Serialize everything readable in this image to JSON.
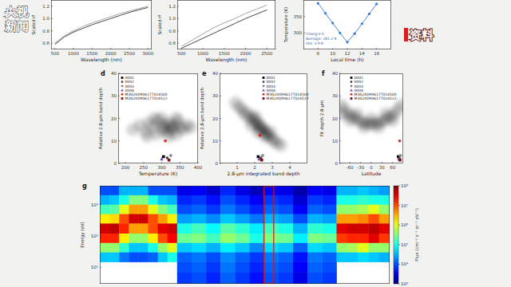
{
  "overlay": {
    "logo": [
      "央视",
      "新闻"
    ],
    "tag": "资料"
  },
  "chart_data": [
    {
      "type": "line",
      "x_label": "Wavelength (nm)",
      "y_label": "Scaled rf",
      "x": [
        500,
        750,
        1000,
        1250,
        1500,
        1750,
        2000,
        2250,
        2500,
        2750,
        3000
      ],
      "series": [
        {
          "color": "#9a9a9a",
          "values": [
            0.6,
            0.72,
            0.8,
            0.87,
            0.93,
            0.98,
            1.03,
            1.08,
            1.12,
            1.16,
            1.2
          ]
        },
        {
          "color": "#333333",
          "values": [
            0.58,
            0.7,
            0.78,
            0.84,
            0.9,
            0.95,
            1.0,
            1.05,
            1.1,
            1.14,
            1.18
          ]
        }
      ],
      "xlim": [
        400,
        3100
      ],
      "ylim": [
        0.5,
        1.3
      ],
      "xticks": [
        500,
        1000,
        1500,
        2000,
        2500,
        3000
      ],
      "yticks": [
        0.6,
        0.8,
        {
          "value": 1,
          "label": "1.0"
        },
        1.2
      ]
    },
    {
      "type": "line",
      "x_label": "Wavelength (nm)",
      "y_label": "Scaled rf",
      "x": [
        500,
        750,
        1000,
        1250,
        1500,
        1750,
        2000,
        2250,
        2500
      ],
      "series": [
        {
          "color": "#9a9a9a",
          "values": [
            0.55,
            0.65,
            0.75,
            0.85,
            0.93,
            1.0,
            1.08,
            1.15,
            1.22
          ]
        },
        {
          "color": "#333333",
          "values": [
            0.52,
            0.6,
            0.68,
            0.76,
            0.84,
            0.92,
            1.0,
            1.07,
            1.14
          ]
        }
      ],
      "xlim": [
        400,
        2700
      ],
      "ylim": [
        0.5,
        1.3
      ],
      "xticks": [
        500,
        1000,
        1500,
        2000,
        2500
      ],
      "yticks": [
        0.6,
        0.8,
        {
          "value": 1,
          "label": "1.0"
        },
        1.2
      ]
    },
    {
      "type": "line",
      "x_label": "Local time (h)",
      "y_label": "Temperature (K)",
      "x": [
        8,
        9,
        10,
        11,
        12,
        13,
        14,
        15,
        16
      ],
      "series": [
        {
          "color": "#3a7bd5",
          "marker": "circle",
          "values": [
            390,
            360,
            330,
            300,
            272,
            298,
            328,
            358,
            388
          ]
        }
      ],
      "xlim": [
        6,
        18
      ],
      "ylim": [
        250,
        400
      ],
      "xticks": [
        8,
        10,
        12,
        14,
        16
      ],
      "yticks": [
        300,
        350
      ],
      "annotations": [
        "Chang'e-5",
        "Average: 281.2 K",
        "Std: 3.9 K"
      ]
    },
    {
      "type": "scatter",
      "panel_label": "d",
      "x_label": "Temperature (K)",
      "y_label": "Relative 2.8-μm band depth",
      "xlim": [
        180,
        400
      ],
      "ylim": [
        0,
        40
      ],
      "xticks": [
        200,
        250,
        300,
        350,
        400
      ],
      "yticks": [
        0,
        10,
        20,
        30,
        40
      ],
      "legend": "upper left",
      "density": {
        "x": [
          220,
          240,
          255,
          265,
          275,
          285,
          290,
          300,
          305,
          310,
          315,
          320,
          325,
          330,
          335,
          340,
          345,
          350,
          360,
          370,
          380,
          300,
          320,
          340,
          260,
          280
        ],
        "y": [
          15,
          17,
          14,
          18,
          16,
          13,
          19,
          15,
          17,
          16,
          14,
          18,
          16,
          15,
          17,
          13,
          19,
          16,
          15,
          17,
          16,
          20,
          12,
          20,
          12,
          20
        ]
      },
      "series": [
        {
          "name": "0001",
          "color": "#000000",
          "marker": "square",
          "x": [
            305
          ],
          "values": [
            3
          ]
        },
        {
          "name": "0002",
          "color": "#444444",
          "marker": "circle",
          "x": [
            315
          ],
          "values": [
            2.5
          ]
        },
        {
          "name": "0003",
          "color": "#888888",
          "marker": "diamond",
          "x": [
            325
          ],
          "values": [
            3.5
          ]
        },
        {
          "name": "0004",
          "color": "#7b3fbf",
          "marker": "triangle",
          "x": [
            300
          ],
          "values": [
            2
          ]
        },
        {
          "name": "M3G20090617T014500",
          "color": "#e0201b",
          "marker": "circle",
          "x": [
            310
          ],
          "values": [
            10
          ]
        },
        {
          "name": "M3G20090617T014522",
          "color": "#7a1010",
          "marker": "square",
          "x": [
            320
          ],
          "values": [
            1.5
          ]
        }
      ]
    },
    {
      "type": "scatter",
      "panel_label": "e",
      "x_label": "2.8-μm integrated band depth",
      "y_label": "Relative 2.8-μm band depth",
      "xlim": [
        0,
        5
      ],
      "ylim": [
        0,
        40
      ],
      "xticks": [
        1,
        2,
        3,
        4
      ],
      "yticks": [
        0,
        10,
        20,
        30,
        40
      ],
      "legend": "upper right",
      "density": {
        "x": [
          0.9,
          1.1,
          1.3,
          1.4,
          1.6,
          1.7,
          1.9,
          2.0,
          2.1,
          2.2,
          2.3,
          2.3,
          2.4,
          2.5,
          2.6,
          2.7,
          2.8,
          3.0,
          3.1,
          3.3,
          3.5,
          2.0,
          2.6,
          1.8,
          2.9,
          2.2
        ],
        "y": [
          27,
          25,
          24,
          22,
          22,
          20,
          20,
          18,
          19,
          17,
          17,
          15,
          16,
          15,
          14,
          13,
          12,
          11,
          10,
          9,
          8,
          21,
          12,
          17,
          14,
          14
        ]
      },
      "series": [
        {
          "name": "0001",
          "color": "#000000",
          "marker": "square",
          "x": [
            2.2
          ],
          "values": [
            3
          ]
        },
        {
          "name": "0002",
          "color": "#444444",
          "marker": "circle",
          "x": [
            2.35
          ],
          "values": [
            2.5
          ]
        },
        {
          "name": "0003",
          "color": "#888888",
          "marker": "diamond",
          "x": [
            2.45
          ],
          "values": [
            3.5
          ]
        },
        {
          "name": "0004",
          "color": "#7b3fbf",
          "marker": "triangle",
          "x": [
            2.25
          ],
          "values": [
            2
          ]
        },
        {
          "name": "M3G20090617T014500",
          "color": "#e0201b",
          "marker": "circle",
          "x": [
            2.3
          ],
          "values": [
            12.5
          ]
        },
        {
          "name": "M3G20090617T014522",
          "color": "#7a1010",
          "marker": "square",
          "x": [
            2.4
          ],
          "values": [
            1.5
          ]
        }
      ]
    },
    {
      "type": "scatter",
      "panel_label": "f",
      "x_label": "Latitude",
      "y_label": "Fit depth 2.8-μm",
      "xlim": [
        -90,
        90
      ],
      "ylim": [
        0,
        40
      ],
      "xticks": [
        -60,
        -30,
        0,
        30,
        60
      ],
      "yticks": [
        0,
        10,
        20,
        30,
        40
      ],
      "legend": "upper center",
      "density": {
        "x": [
          -85,
          -75,
          -65,
          -55,
          -45,
          -35,
          -25,
          -15,
          -5,
          5,
          15,
          25,
          35,
          45,
          55,
          65,
          75,
          85,
          -60,
          -20,
          20,
          60,
          0,
          -40,
          40,
          -80
        ],
        "y": [
          26,
          24,
          22,
          21,
          20,
          19,
          18,
          18,
          17.5,
          17.5,
          18,
          18,
          19,
          20,
          21,
          22,
          24,
          26,
          19,
          16,
          16,
          19,
          20,
          22,
          22,
          22
        ]
      },
      "series": [
        {
          "name": "0001",
          "color": "#000000",
          "marker": "square",
          "x": [
            76
          ],
          "values": [
            3
          ]
        },
        {
          "name": "0002",
          "color": "#444444",
          "marker": "circle",
          "x": [
            79
          ],
          "values": [
            2.5
          ]
        },
        {
          "name": "0003",
          "color": "#888888",
          "marker": "diamond",
          "x": [
            82
          ],
          "values": [
            3.5
          ]
        },
        {
          "name": "0004",
          "color": "#7b3fbf",
          "marker": "triangle",
          "x": [
            78
          ],
          "values": [
            2
          ]
        },
        {
          "name": "M3G20090617T014500",
          "color": "#e0201b",
          "marker": "circle",
          "x": [
            80
          ],
          "values": [
            10
          ]
        },
        {
          "name": "M3G20090617T014522",
          "color": "#7a1010",
          "marker": "square",
          "x": [
            81
          ],
          "values": [
            1.5
          ]
        }
      ]
    },
    {
      "type": "heatmap",
      "panel_label": "g",
      "y_label": "Energy (eV)",
      "log": "y",
      "tick_labels": "y",
      "xlim": [
        0,
        30
      ],
      "ylim": [
        3,
        4000
      ],
      "yticks": [
        {
          "value": 10,
          "label": "10¹"
        },
        {
          "value": 100,
          "label": "10²"
        },
        {
          "value": 1000,
          "label": "10³"
        }
      ],
      "x_edges": [
        0,
        1,
        2,
        3,
        4,
        5,
        6,
        7,
        8,
        9.5,
        11,
        12.5,
        14,
        15.5,
        17,
        18.5,
        20,
        21.5,
        23,
        24.5,
        25.6,
        26.7,
        27.8,
        28.9,
        30
      ],
      "y_edges": [
        4000,
        2000,
        1000,
        500,
        250,
        120,
        60,
        30,
        15,
        7,
        3
      ],
      "cells": [
        [
          4,
          4,
          4.5,
          4.5,
          4.5,
          4,
          4,
          4,
          3.5,
          3.6,
          3.4,
          3.8,
          3.5,
          3.3,
          3.6,
          3.5,
          3.2,
          3.6,
          3.5,
          4.5,
          4.5,
          4.6,
          4.5,
          4.4
        ],
        [
          4.5,
          4.6,
          5,
          5.5,
          5.5,
          5,
          4.6,
          4.5,
          3.8,
          3.9,
          3.7,
          4,
          3.8,
          3.6,
          3.9,
          3.8,
          3.4,
          3.9,
          3.8,
          5,
          5,
          5.1,
          5,
          5
        ],
        [
          5.2,
          5.3,
          6,
          6.6,
          6.6,
          6,
          5.5,
          5.2,
          4,
          4.1,
          3.9,
          4.2,
          4,
          3.8,
          4.1,
          4,
          3.6,
          4.1,
          4,
          5.6,
          5.6,
          5.7,
          6,
          5.6
        ],
        [
          6.2,
          6.3,
          7,
          7.6,
          7.6,
          7,
          6.6,
          6.2,
          4.4,
          4.5,
          4.3,
          4.6,
          4.4,
          4.2,
          4.5,
          4.4,
          4,
          4.5,
          4.4,
          6.6,
          6.6,
          6.7,
          7,
          6.6
        ],
        [
          7.6,
          7.7,
          7.2,
          6.6,
          6.6,
          7,
          7.5,
          7.6,
          5,
          5.2,
          4.9,
          5.3,
          5.1,
          4.8,
          5.2,
          5,
          4.5,
          5.1,
          5,
          7.5,
          7.6,
          7.6,
          7.7,
          7.5
        ],
        [
          7.2,
          7.2,
          6.2,
          5.6,
          5.6,
          6.2,
          7,
          7.4,
          5.4,
          5.5,
          5.2,
          5.6,
          5.4,
          5,
          5.5,
          5.4,
          4.8,
          5.5,
          5.4,
          7.1,
          7.2,
          7.2,
          7.5,
          7.1
        ],
        [
          5.6,
          5.6,
          5.1,
          4.6,
          4.6,
          5,
          5.6,
          6,
          4.6,
          4.7,
          4.5,
          4.8,
          4.6,
          4.3,
          4.7,
          4.6,
          4.1,
          4.7,
          4.6,
          5.6,
          5.7,
          6,
          5.6,
          5.6
        ],
        [
          4.6,
          4.6,
          4.2,
          4,
          4,
          4.1,
          4.6,
          5,
          4.1,
          4.2,
          4,
          4.3,
          4.1,
          3.9,
          4.2,
          4.1,
          3.7,
          4.2,
          4.1,
          4.6,
          4.6,
          4.7,
          4.6,
          4.5
        ],
        [
          null,
          null,
          null,
          null,
          null,
          null,
          null,
          null,
          4,
          4.1,
          3.9,
          4.2,
          4,
          3.8,
          4.1,
          4,
          3.6,
          4.1,
          4,
          null,
          null,
          null,
          null,
          null
        ],
        [
          null,
          null,
          null,
          null,
          null,
          null,
          null,
          null,
          3.9,
          4,
          3.8,
          4.1,
          3.9,
          3.7,
          4,
          3.9,
          3.5,
          4,
          3.9,
          null,
          null,
          null,
          null,
          null
        ]
      ],
      "highlight_x": [
        17,
        18
      ],
      "colorbar": {
        "label": "Flux (cm⁻² s⁻¹ sr⁻¹ eV⁻¹)",
        "lim": [
          3,
          8
        ],
        "ticks": [
          {
            "value": 3,
            "label": "10³"
          },
          {
            "value": 4,
            "label": "10⁴"
          },
          {
            "value": 5,
            "label": "10⁵"
          },
          {
            "value": 6,
            "label": "10⁶"
          },
          {
            "value": 7,
            "label": "10⁷"
          },
          {
            "value": 8,
            "label": "10⁸"
          }
        ]
      }
    }
  ]
}
